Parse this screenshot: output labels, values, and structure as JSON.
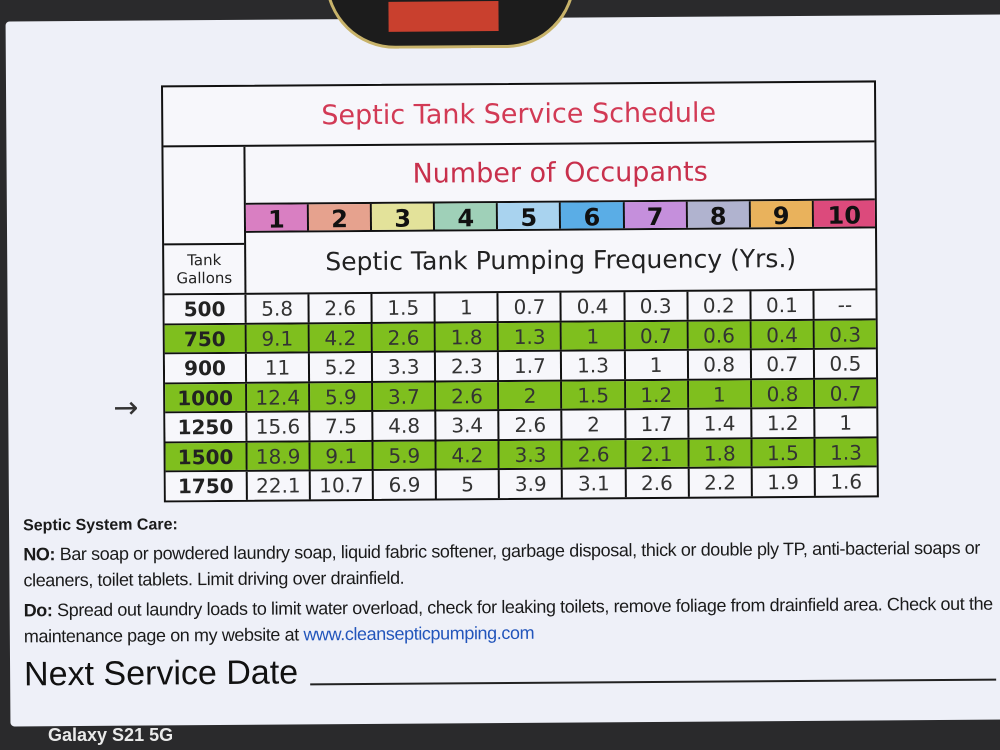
{
  "title": "Septic Tank Service Schedule",
  "occupants_title": "Number of Occupants",
  "occupants": [
    {
      "label": "1",
      "color": "#d97fc2"
    },
    {
      "label": "2",
      "color": "#e6a28e"
    },
    {
      "label": "3",
      "color": "#e3e29a"
    },
    {
      "label": "4",
      "color": "#9fd0b8"
    },
    {
      "label": "5",
      "color": "#a9d3ef"
    },
    {
      "label": "6",
      "color": "#5aade6"
    },
    {
      "label": "7",
      "color": "#c58fdc"
    },
    {
      "label": "8",
      "color": "#b0b3cf"
    },
    {
      "label": "9",
      "color": "#e9b25c"
    },
    {
      "label": "10",
      "color": "#dc4a7c"
    }
  ],
  "tank_header": [
    "Tank",
    "Gallons"
  ],
  "frequency_title": "Septic Tank Pumping Frequency (Yrs.)",
  "rows": [
    {
      "gallons": "500",
      "values": [
        "5.8",
        "2.6",
        "1.5",
        "1",
        "0.7",
        "0.4",
        "0.3",
        "0.2",
        "0.1",
        "--"
      ]
    },
    {
      "gallons": "750",
      "values": [
        "9.1",
        "4.2",
        "2.6",
        "1.8",
        "1.3",
        "1",
        "0.7",
        "0.6",
        "0.4",
        "0.3"
      ]
    },
    {
      "gallons": "900",
      "values": [
        "11",
        "5.2",
        "3.3",
        "2.3",
        "1.7",
        "1.3",
        "1",
        "0.8",
        "0.7",
        "0.5"
      ]
    },
    {
      "gallons": "1000",
      "values": [
        "12.4",
        "5.9",
        "3.7",
        "2.6",
        "2",
        "1.5",
        "1.2",
        "1",
        "0.8",
        "0.7"
      ]
    },
    {
      "gallons": "1250",
      "values": [
        "15.6",
        "7.5",
        "4.8",
        "3.4",
        "2.6",
        "2",
        "1.7",
        "1.4",
        "1.2",
        "1"
      ]
    },
    {
      "gallons": "1500",
      "values": [
        "18.9",
        "9.1",
        "5.9",
        "4.2",
        "3.3",
        "2.6",
        "2.1",
        "1.8",
        "1.5",
        "1.3"
      ]
    },
    {
      "gallons": "1750",
      "values": [
        "22.1",
        "10.7",
        "6.9",
        "5",
        "3.9",
        "3.1",
        "2.6",
        "2.2",
        "1.9",
        "1.6"
      ]
    }
  ],
  "highlight_color": "#7fbf1e",
  "care": {
    "heading": "Septic System Care:",
    "no_label": "NO:",
    "no_text": " Bar soap or powdered laundry soap, liquid fabric softener, garbage disposal, thick or double ply TP, anti-bacterial soaps or cleaners, toilet tablets. Limit driving over drainfield.",
    "do_label": "Do:",
    "do_text": " Spread out laundry loads to limit water overload, check for leaking toilets, remove foliage from drainfield area. Check out the maintenance page on my website at ",
    "website": "www.cleansepticpumping.com"
  },
  "next_service_label": "Next Service Date",
  "watermark": "Galaxy S21 5G"
}
